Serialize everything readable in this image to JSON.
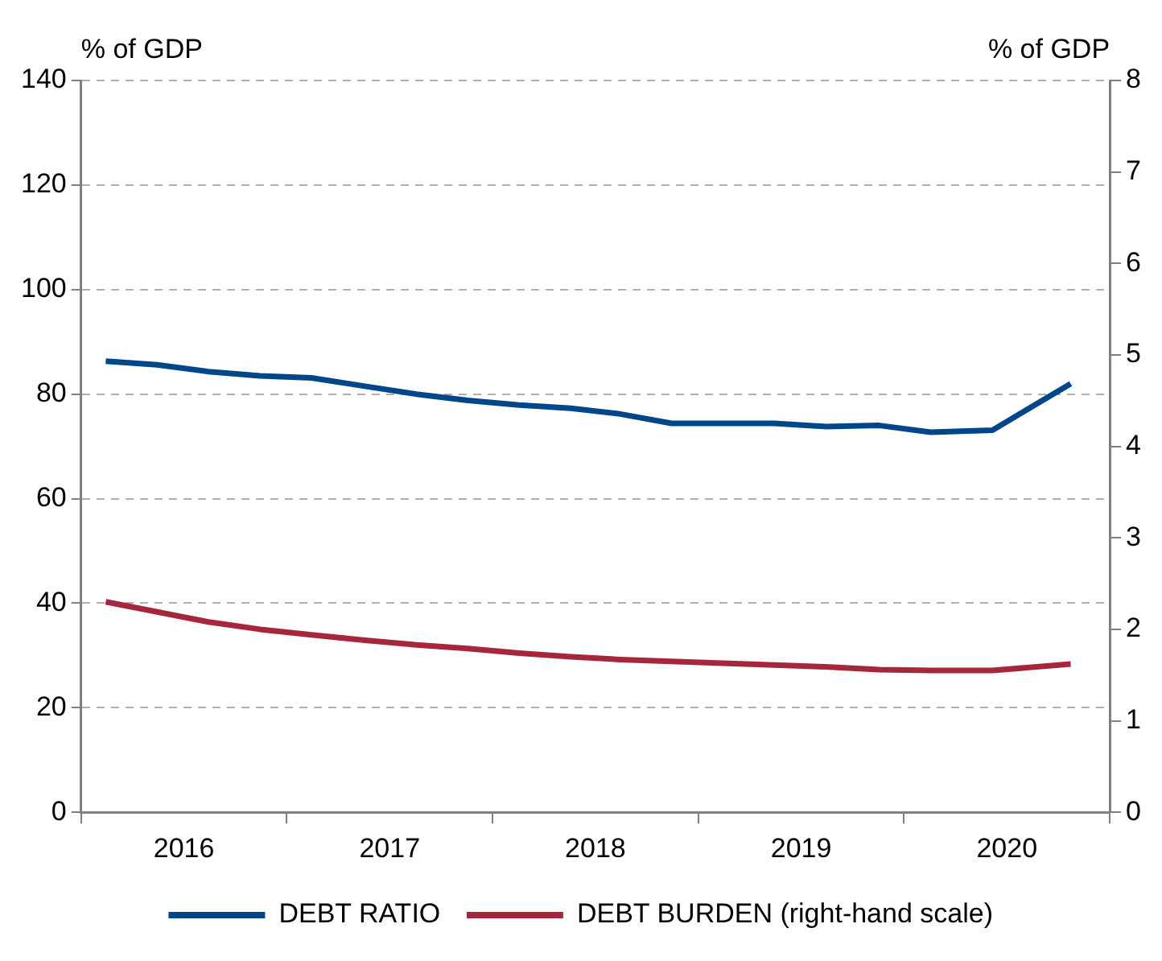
{
  "chart_data": {
    "type": "line",
    "ylabel": "% of GDP",
    "y2label": "% of GDP",
    "xlim": [
      2016,
      2021
    ],
    "xticks": [
      {
        "value": 2016,
        "label": null
      },
      {
        "value": 2016.5,
        "label": "2016"
      },
      {
        "value": 2017,
        "label": null
      },
      {
        "value": 2017.5,
        "label": "2017"
      },
      {
        "value": 2018,
        "label": null
      },
      {
        "value": 2018.5,
        "label": "2018"
      },
      {
        "value": 2019,
        "label": null
      },
      {
        "value": 2019.5,
        "label": "2019"
      },
      {
        "value": 2020,
        "label": null
      },
      {
        "value": 2020.5,
        "label": "2020"
      },
      {
        "value": 2021,
        "label": null
      }
    ],
    "ylim": [
      0,
      140
    ],
    "yticks": [
      0,
      20,
      40,
      60,
      80,
      100,
      120,
      140
    ],
    "y2lim": [
      0,
      8
    ],
    "y2ticks": [
      0,
      1,
      2,
      3,
      4,
      5,
      6,
      7,
      8
    ],
    "grid": "y",
    "legend": "bottom",
    "marker": "none",
    "line_style": "solid",
    "x": [
      2016.12,
      2016.37,
      2016.62,
      2016.87,
      2017.12,
      2017.38,
      2017.63,
      2017.88,
      2018.13,
      2018.38,
      2018.62,
      2018.87,
      2019.37,
      2019.62,
      2019.88,
      2020.13,
      2020.43,
      2020.81
    ],
    "series": [
      {
        "name": "DEBT RATIO",
        "color": "#00468b",
        "values": [
          86.3,
          85.6,
          84.3,
          83.5,
          83.1,
          81.5,
          80.0,
          78.8,
          77.9,
          77.3,
          76.2,
          74.4,
          74.4,
          73.8,
          74.0,
          72.7,
          73.1,
          82.0
        ]
      },
      {
        "name": "DEBT BURDEN (right-hand scale)",
        "color": "#a6263c",
        "axis": "y2",
        "values": [
          2.3,
          2.19,
          2.08,
          2.0,
          1.94,
          1.88,
          1.83,
          1.79,
          1.74,
          1.7,
          1.67,
          1.65,
          1.61,
          1.59,
          1.56,
          1.55,
          1.55,
          1.62
        ]
      }
    ]
  }
}
